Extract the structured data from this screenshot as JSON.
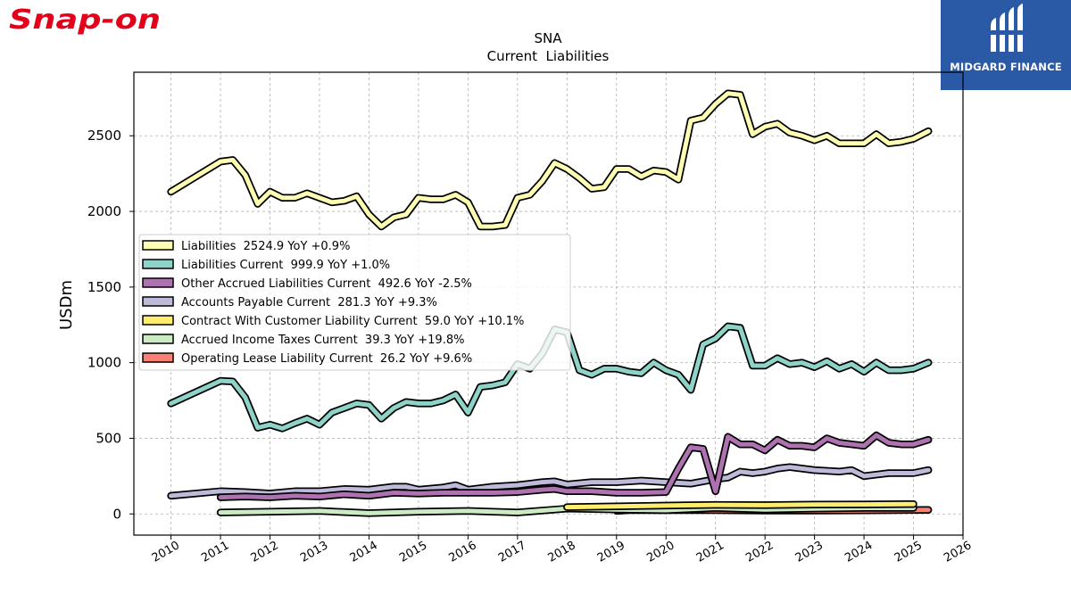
{
  "brand": {
    "name": "Snap-on",
    "color": "#e3001b"
  },
  "watermark": {
    "name": "MIDGARD FINANCE",
    "bg": "#2a59a6"
  },
  "chart_data": {
    "type": "line",
    "title": "SNA",
    "subtitle": "Current  Liabilities",
    "ylabel": "USDm",
    "xlabel": "",
    "xlim": [
      2009.25,
      2026.0
    ],
    "ylim": [
      -140,
      2920
    ],
    "x_ticks": [
      "2010",
      "2011",
      "2012",
      "2013",
      "2014",
      "2015",
      "2016",
      "2017",
      "2018",
      "2019",
      "2020",
      "2021",
      "2022",
      "2023",
      "2024",
      "2025",
      "2026"
    ],
    "y_ticks": [
      "0",
      "500",
      "1000",
      "1500",
      "2000",
      "2500"
    ],
    "grid": true,
    "legend_position": "center-left",
    "series": [
      {
        "name": "Liabilities",
        "legend": "Liabilities  2524.9 YoY +0.9%",
        "color": "#ffffb3",
        "points": [
          [
            2010.0,
            2130
          ],
          [
            2011.0,
            2330
          ],
          [
            2011.25,
            2340
          ],
          [
            2011.5,
            2240
          ],
          [
            2011.75,
            2050
          ],
          [
            2012.0,
            2130
          ],
          [
            2012.25,
            2090
          ],
          [
            2012.5,
            2090
          ],
          [
            2012.75,
            2120
          ],
          [
            2013.0,
            2090
          ],
          [
            2013.25,
            2060
          ],
          [
            2013.5,
            2070
          ],
          [
            2013.75,
            2100
          ],
          [
            2014.0,
            1980
          ],
          [
            2014.25,
            1900
          ],
          [
            2014.5,
            1960
          ],
          [
            2014.75,
            1980
          ],
          [
            2015.0,
            2090
          ],
          [
            2015.25,
            2080
          ],
          [
            2015.5,
            2080
          ],
          [
            2015.75,
            2110
          ],
          [
            2016.0,
            2060
          ],
          [
            2016.25,
            1900
          ],
          [
            2016.5,
            1900
          ],
          [
            2016.75,
            1910
          ],
          [
            2017.0,
            2090
          ],
          [
            2017.25,
            2110
          ],
          [
            2017.5,
            2200
          ],
          [
            2017.75,
            2320
          ],
          [
            2018.0,
            2280
          ],
          [
            2018.25,
            2220
          ],
          [
            2018.5,
            2150
          ],
          [
            2018.75,
            2160
          ],
          [
            2019.0,
            2280
          ],
          [
            2019.25,
            2280
          ],
          [
            2019.5,
            2230
          ],
          [
            2019.75,
            2270
          ],
          [
            2020.0,
            2260
          ],
          [
            2020.25,
            2210
          ],
          [
            2020.5,
            2600
          ],
          [
            2020.75,
            2620
          ],
          [
            2021.0,
            2710
          ],
          [
            2021.25,
            2780
          ],
          [
            2021.5,
            2770
          ],
          [
            2021.75,
            2510
          ],
          [
            2022.0,
            2560
          ],
          [
            2022.25,
            2580
          ],
          [
            2022.5,
            2520
          ],
          [
            2022.75,
            2500
          ],
          [
            2023.0,
            2470
          ],
          [
            2023.25,
            2500
          ],
          [
            2023.5,
            2450
          ],
          [
            2023.75,
            2450
          ],
          [
            2024.0,
            2450
          ],
          [
            2024.25,
            2510
          ],
          [
            2024.5,
            2450
          ],
          [
            2024.75,
            2460
          ],
          [
            2025.0,
            2480
          ],
          [
            2025.3,
            2530
          ]
        ]
      },
      {
        "name": "Liabilities Current",
        "legend": "Liabilities Current  999.9 YoY +1.0%",
        "color": "#8dd3c7",
        "points": [
          [
            2010.0,
            730
          ],
          [
            2011.0,
            880
          ],
          [
            2011.25,
            875
          ],
          [
            2011.5,
            770
          ],
          [
            2011.75,
            570
          ],
          [
            2012.0,
            590
          ],
          [
            2012.25,
            565
          ],
          [
            2012.5,
            600
          ],
          [
            2012.75,
            630
          ],
          [
            2013.0,
            590
          ],
          [
            2013.25,
            670
          ],
          [
            2013.5,
            700
          ],
          [
            2013.75,
            730
          ],
          [
            2014.0,
            720
          ],
          [
            2014.25,
            630
          ],
          [
            2014.5,
            700
          ],
          [
            2014.75,
            740
          ],
          [
            2015.0,
            730
          ],
          [
            2015.25,
            730
          ],
          [
            2015.5,
            750
          ],
          [
            2015.75,
            790
          ],
          [
            2016.0,
            670
          ],
          [
            2016.25,
            840
          ],
          [
            2016.5,
            850
          ],
          [
            2016.75,
            870
          ],
          [
            2017.0,
            990
          ],
          [
            2017.25,
            960
          ],
          [
            2017.5,
            1060
          ],
          [
            2017.75,
            1220
          ],
          [
            2018.0,
            1200
          ],
          [
            2018.25,
            950
          ],
          [
            2018.5,
            920
          ],
          [
            2018.75,
            960
          ],
          [
            2019.0,
            960
          ],
          [
            2019.25,
            940
          ],
          [
            2019.5,
            930
          ],
          [
            2019.75,
            1000
          ],
          [
            2020.0,
            950
          ],
          [
            2020.25,
            920
          ],
          [
            2020.5,
            820
          ],
          [
            2020.75,
            1120
          ],
          [
            2021.0,
            1160
          ],
          [
            2021.25,
            1240
          ],
          [
            2021.5,
            1230
          ],
          [
            2021.75,
            980
          ],
          [
            2022.0,
            980
          ],
          [
            2022.25,
            1030
          ],
          [
            2022.5,
            990
          ],
          [
            2022.75,
            1000
          ],
          [
            2023.0,
            970
          ],
          [
            2023.25,
            1010
          ],
          [
            2023.5,
            960
          ],
          [
            2023.75,
            990
          ],
          [
            2024.0,
            940
          ],
          [
            2024.25,
            1000
          ],
          [
            2024.5,
            950
          ],
          [
            2024.75,
            950
          ],
          [
            2025.0,
            960
          ],
          [
            2025.3,
            1000
          ]
        ]
      },
      {
        "name": "Other Accrued Liabilities Current",
        "legend": "Other Accrued Liabilities Current  492.6 YoY -2.5%",
        "color": "#af72b0",
        "points": [
          [
            2011.0,
            110
          ],
          [
            2011.5,
            115
          ],
          [
            2012.0,
            110
          ],
          [
            2012.5,
            120
          ],
          [
            2013.0,
            115
          ],
          [
            2013.5,
            130
          ],
          [
            2014.0,
            120
          ],
          [
            2014.5,
            140
          ],
          [
            2015.0,
            135
          ],
          [
            2015.5,
            140
          ],
          [
            2016.0,
            140
          ],
          [
            2016.5,
            140
          ],
          [
            2017.0,
            145
          ],
          [
            2017.5,
            160
          ],
          [
            2017.75,
            165
          ],
          [
            2018.0,
            150
          ],
          [
            2018.5,
            150
          ],
          [
            2019.0,
            140
          ],
          [
            2019.5,
            140
          ],
          [
            2020.0,
            145
          ],
          [
            2020.25,
            300
          ],
          [
            2020.5,
            440
          ],
          [
            2020.75,
            430
          ],
          [
            2021.0,
            150
          ],
          [
            2021.25,
            510
          ],
          [
            2021.5,
            460
          ],
          [
            2021.75,
            460
          ],
          [
            2022.0,
            420
          ],
          [
            2022.25,
            490
          ],
          [
            2022.5,
            450
          ],
          [
            2022.75,
            450
          ],
          [
            2023.0,
            440
          ],
          [
            2023.25,
            500
          ],
          [
            2023.5,
            470
          ],
          [
            2023.75,
            460
          ],
          [
            2024.0,
            450
          ],
          [
            2024.25,
            520
          ],
          [
            2024.5,
            470
          ],
          [
            2024.75,
            460
          ],
          [
            2025.0,
            460
          ],
          [
            2025.3,
            490
          ]
        ]
      },
      {
        "name": "Accounts Payable Current",
        "legend": "Accounts Payable Current  281.3 YoY +9.3%",
        "color": "#bebada",
        "points": [
          [
            2010.0,
            120
          ],
          [
            2011.0,
            150
          ],
          [
            2011.5,
            145
          ],
          [
            2012.0,
            135
          ],
          [
            2012.5,
            150
          ],
          [
            2013.0,
            150
          ],
          [
            2013.5,
            165
          ],
          [
            2014.0,
            160
          ],
          [
            2014.25,
            170
          ],
          [
            2014.5,
            180
          ],
          [
            2014.75,
            180
          ],
          [
            2015.0,
            160
          ],
          [
            2015.5,
            175
          ],
          [
            2015.75,
            190
          ],
          [
            2016.0,
            160
          ],
          [
            2016.5,
            180
          ],
          [
            2017.0,
            190
          ],
          [
            2017.25,
            200
          ],
          [
            2017.5,
            210
          ],
          [
            2017.75,
            215
          ],
          [
            2018.0,
            195
          ],
          [
            2018.5,
            210
          ],
          [
            2019.0,
            210
          ],
          [
            2019.5,
            220
          ],
          [
            2020.0,
            210
          ],
          [
            2020.5,
            200
          ],
          [
            2021.0,
            230
          ],
          [
            2021.25,
            240
          ],
          [
            2021.5,
            280
          ],
          [
            2021.75,
            270
          ],
          [
            2022.0,
            280
          ],
          [
            2022.25,
            300
          ],
          [
            2022.5,
            310
          ],
          [
            2022.75,
            300
          ],
          [
            2023.0,
            290
          ],
          [
            2023.5,
            280
          ],
          [
            2023.75,
            290
          ],
          [
            2024.0,
            250
          ],
          [
            2024.25,
            260
          ],
          [
            2024.5,
            270
          ],
          [
            2025.0,
            270
          ],
          [
            2025.3,
            290
          ]
        ]
      },
      {
        "name": "Contract With Customer Liability Current",
        "legend": "Contract With Customer Liability Current  59.0 YoY +10.1%",
        "color": "#ffed6f",
        "points": [
          [
            2018.0,
            45
          ],
          [
            2019.0,
            50
          ],
          [
            2020.0,
            55
          ],
          [
            2021.0,
            60
          ],
          [
            2022.0,
            58
          ],
          [
            2023.0,
            62
          ],
          [
            2024.0,
            63
          ],
          [
            2025.0,
            65
          ]
        ]
      },
      {
        "name": "Accrued Income Taxes Current",
        "legend": "Accrued Income Taxes Current  39.3 YoY +19.8%",
        "color": "#ccebc5",
        "points": [
          [
            2011.0,
            10
          ],
          [
            2012.0,
            15
          ],
          [
            2013.0,
            20
          ],
          [
            2014.0,
            5
          ],
          [
            2015.0,
            15
          ],
          [
            2016.0,
            20
          ],
          [
            2017.0,
            10
          ],
          [
            2018.0,
            35
          ],
          [
            2019.0,
            30
          ],
          [
            2020.0,
            25
          ],
          [
            2021.0,
            40
          ],
          [
            2022.0,
            30
          ],
          [
            2023.0,
            35
          ],
          [
            2024.0,
            40
          ],
          [
            2025.0,
            40
          ]
        ]
      },
      {
        "name": "Operating Lease Liability Current",
        "legend": "Operating Lease Liability Current  26.2 YoY +9.6%",
        "color": "#fb8072",
        "points": [
          [
            2019.0,
            20
          ],
          [
            2019.25,
            25
          ],
          [
            2020.0,
            25
          ],
          [
            2021.0,
            25
          ],
          [
            2022.0,
            22
          ],
          [
            2023.0,
            22
          ],
          [
            2024.0,
            24
          ],
          [
            2025.3,
            26
          ]
        ]
      }
    ]
  }
}
